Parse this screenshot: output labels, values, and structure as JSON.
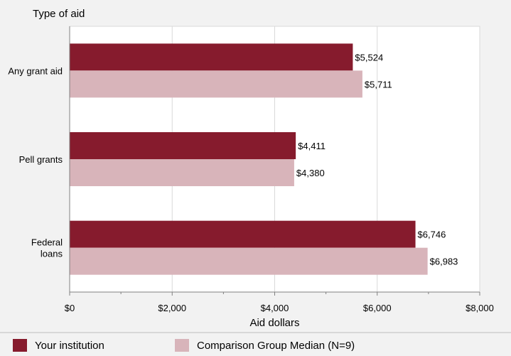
{
  "chart_data": {
    "type": "bar",
    "orientation": "horizontal",
    "ylabel": "Type of aid",
    "xlabel": "Aid dollars",
    "categories": [
      [
        "Any grant aid"
      ],
      [
        "Pell grants"
      ],
      [
        "Federal",
        "loans"
      ]
    ],
    "series": [
      {
        "name": "Your institution",
        "color": "#861b2d",
        "values": [
          5524,
          4411,
          6746
        ],
        "labels": [
          "$5,524",
          "$4,411",
          "$6,746"
        ]
      },
      {
        "name": "Comparison Group Median (N=9)",
        "color": "#d8b4ba",
        "values": [
          5711,
          4380,
          6983
        ],
        "labels": [
          "$5,711",
          "$4,380",
          "$6,983"
        ]
      }
    ],
    "xlim": [
      0,
      8000
    ],
    "xticks": [
      0,
      2000,
      4000,
      6000,
      8000
    ],
    "xtick_labels": [
      "$0",
      "$2,000",
      "$4,000",
      "$6,000",
      "$8,000"
    ],
    "grid": true,
    "legend_position": "bottom"
  }
}
